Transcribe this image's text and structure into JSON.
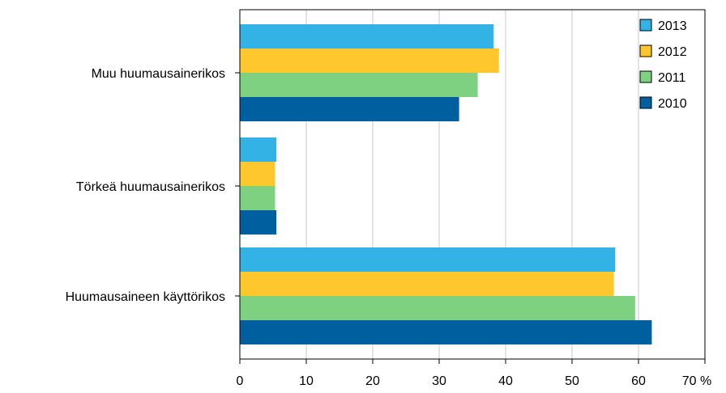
{
  "chart_data": {
    "type": "bar",
    "orientation": "horizontal",
    "categories": [
      "Muu huumausainerikos",
      "Törkeä huumausainerikos",
      "Huumausaineen käyttörikos"
    ],
    "series": [
      {
        "name": "2013",
        "color": "#33b2e6",
        "values": [
          38.2,
          5.5,
          56.5
        ]
      },
      {
        "name": "2012",
        "color": "#fdc72d",
        "values": [
          39.0,
          5.3,
          56.3
        ]
      },
      {
        "name": "2011",
        "color": "#7ed180",
        "values": [
          35.8,
          5.3,
          59.5
        ]
      },
      {
        "name": "2010",
        "color": "#005f9e",
        "values": [
          33.0,
          5.5,
          62.0
        ]
      }
    ],
    "x_ticks": [
      "0",
      "10",
      "20",
      "30",
      "40",
      "50",
      "60",
      "70 %"
    ],
    "xlim": [
      0,
      70
    ],
    "grid": true,
    "legend_position": "top-right"
  }
}
